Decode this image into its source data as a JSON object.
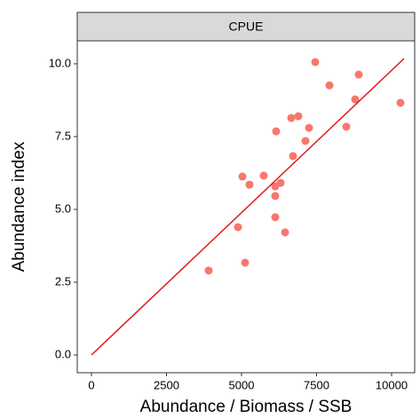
{
  "chart_data": {
    "type": "scatter",
    "strip": "CPUE",
    "xlabel": "Abundance / Biomass / SSB",
    "ylabel": "Abundance index",
    "color": "#f8766d",
    "fit_color": "#e0191c",
    "x": [
      3905,
      5118,
      4882,
      5030,
      5266,
      5740,
      6124,
      6124,
      6302,
      6124,
      6450,
      6154,
      6657,
      6893,
      7249,
      7130,
      6716,
      7456,
      7929,
      8905,
      8787,
      8491,
      10296
    ],
    "y": [
      2.9,
      3.17,
      4.39,
      6.13,
      5.85,
      6.16,
      5.79,
      5.46,
      5.91,
      4.73,
      4.21,
      7.68,
      8.14,
      8.2,
      7.8,
      7.35,
      6.83,
      10.06,
      9.26,
      9.63,
      8.78,
      7.84,
      8.66
    ],
    "fit": {
      "x": [
        0,
        10414
      ],
      "y": [
        0,
        10.18
      ]
    },
    "xlim": [
      -473,
      10769
    ],
    "ylim": [
      -0.61,
      10.79
    ],
    "xticks": [
      0,
      2500,
      5000,
      7500,
      10000
    ],
    "yticks": [
      {
        "value": 0,
        "label": "0.0"
      },
      {
        "value": 2.5,
        "label": "2.5"
      },
      {
        "value": 5,
        "label": "5.0"
      },
      {
        "value": 7.5,
        "label": "7.5"
      },
      {
        "value": 10,
        "label": "10.0"
      }
    ]
  }
}
